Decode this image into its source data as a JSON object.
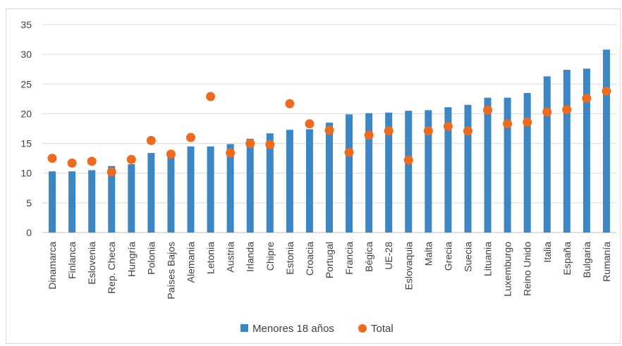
{
  "chart_data": {
    "type": "bar",
    "categories": [
      "Dinamarca",
      "Finlanca",
      "Eslovenia",
      "Rep. Checa",
      "Hungría",
      "Polonia",
      "Países Bajos",
      "Alemania",
      "Letonia",
      "Austria",
      "Irlanda",
      "Chipre",
      "Estonia",
      "Croacia",
      "Portugal",
      "Francia",
      "Bégica",
      "UE-28",
      "Eslovaquia",
      "Malta",
      "Grecia",
      "Suecia",
      "Lituania",
      "Luxemburgo",
      "Reino Unido",
      "Italia",
      "España",
      "Bulgaria",
      "Rumanía"
    ],
    "series": [
      {
        "name": "Menores 18 años",
        "type": "bar",
        "color": "#3d86c6",
        "values": [
          10.3,
          10.3,
          10.5,
          11.2,
          11.5,
          13.4,
          13.0,
          14.5,
          14.5,
          14.9,
          15.8,
          16.7,
          17.3,
          17.4,
          18.5,
          19.9,
          20.1,
          20.2,
          20.5,
          20.6,
          21.1,
          21.5,
          22.7,
          22.7,
          23.5,
          26.3,
          27.4,
          27.6,
          30.8
        ]
      },
      {
        "name": "Total",
        "type": "scatter",
        "color": "#ed6b1f",
        "values": [
          12.5,
          11.7,
          12.0,
          10.2,
          12.3,
          15.5,
          13.2,
          16.0,
          22.9,
          13.4,
          15.0,
          14.8,
          21.7,
          18.3,
          17.2,
          13.5,
          16.4,
          17.1,
          12.2,
          17.1,
          17.9,
          17.1,
          20.6,
          18.3,
          18.6,
          20.3,
          20.7,
          22.6,
          23.8
        ]
      }
    ],
    "title": "",
    "xlabel": "",
    "ylabel": "",
    "ylim": [
      0,
      35
    ],
    "yticks": [
      "0",
      "5",
      "10",
      "15",
      "20",
      "25",
      "30",
      "35"
    ],
    "grid": true,
    "legend_position": "bottom"
  }
}
